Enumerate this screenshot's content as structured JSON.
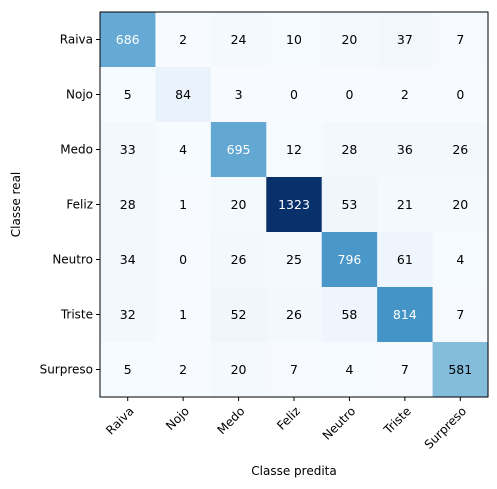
{
  "chart_data": {
    "type": "heatmap",
    "title": "",
    "xlabel": "Classe predita",
    "ylabel": "Classe real",
    "x_categories": [
      "Raiva",
      "Nojo",
      "Medo",
      "Feliz",
      "Neutro",
      "Triste",
      "Surpreso"
    ],
    "y_categories": [
      "Raiva",
      "Nojo",
      "Medo",
      "Feliz",
      "Neutro",
      "Triste",
      "Surpreso"
    ],
    "values": [
      [
        686,
        2,
        24,
        10,
        20,
        37,
        7
      ],
      [
        5,
        84,
        3,
        0,
        0,
        2,
        0
      ],
      [
        33,
        4,
        695,
        12,
        28,
        36,
        26
      ],
      [
        28,
        1,
        20,
        1323,
        53,
        21,
        20
      ],
      [
        34,
        0,
        26,
        25,
        796,
        61,
        4
      ],
      [
        32,
        1,
        52,
        26,
        58,
        814,
        7
      ],
      [
        5,
        2,
        20,
        7,
        4,
        7,
        581
      ]
    ],
    "value_range": [
      0,
      1323
    ],
    "colormap": "Blues",
    "colormap_low": "#f7fbff",
    "colormap_high": "#08306b",
    "text_color_dark": "#000000",
    "text_color_light": "#ffffff",
    "x_tick_rotation_deg": 45,
    "grid": false,
    "legend": "none"
  }
}
